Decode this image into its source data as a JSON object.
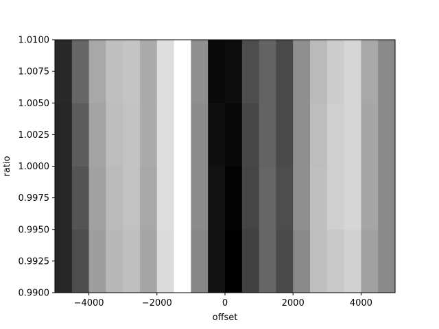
{
  "chart_data": {
    "type": "heatmap",
    "title": "",
    "xlabel": "offset",
    "ylabel": "ratio",
    "xlim": [
      -5000,
      5000
    ],
    "ylim": [
      0.99,
      1.01
    ],
    "grid": false,
    "colormap": "grayscale",
    "x_tick_values": [
      -4000,
      -2000,
      0,
      2000,
      4000
    ],
    "x_tick_labels": [
      "−4000",
      "−2000",
      "0",
      "2000",
      "4000"
    ],
    "y_tick_values": [
      0.99,
      0.9925,
      0.995,
      0.9975,
      1.0,
      1.0025,
      1.005,
      1.0075,
      1.01
    ],
    "y_tick_labels": [
      "0.9900",
      "0.9925",
      "0.9950",
      "0.9975",
      "1.0000",
      "1.0025",
      "1.0050",
      "1.0075",
      "1.0100"
    ],
    "x_bin_edges": [
      -5000,
      -4500,
      -4000,
      -3500,
      -3000,
      -2500,
      -2000,
      -1500,
      -1000,
      -500,
      0,
      500,
      1000,
      1500,
      2000,
      2500,
      3000,
      3500,
      4000,
      4500,
      5000
    ],
    "y_bin_edges": [
      0.99,
      0.995,
      1.0,
      1.005,
      1.01
    ],
    "values": [
      [
        0.15,
        0.3,
        0.62,
        0.72,
        0.75,
        0.65,
        0.86,
        1.0,
        0.53,
        0.07,
        0.0,
        0.25,
        0.4,
        0.29,
        0.54,
        0.75,
        0.79,
        0.82,
        0.63,
        0.54
      ],
      [
        0.15,
        0.33,
        0.63,
        0.73,
        0.76,
        0.66,
        0.87,
        1.0,
        0.55,
        0.07,
        0.01,
        0.27,
        0.4,
        0.3,
        0.56,
        0.75,
        0.81,
        0.84,
        0.65,
        0.54
      ],
      [
        0.15,
        0.36,
        0.64,
        0.74,
        0.76,
        0.67,
        0.87,
        1.0,
        0.55,
        0.06,
        0.03,
        0.28,
        0.39,
        0.29,
        0.56,
        0.74,
        0.81,
        0.84,
        0.65,
        0.54
      ],
      [
        0.16,
        0.4,
        0.66,
        0.75,
        0.77,
        0.67,
        0.87,
        1.0,
        0.56,
        0.04,
        0.05,
        0.3,
        0.39,
        0.29,
        0.56,
        0.73,
        0.8,
        0.84,
        0.66,
        0.54
      ]
    ]
  }
}
